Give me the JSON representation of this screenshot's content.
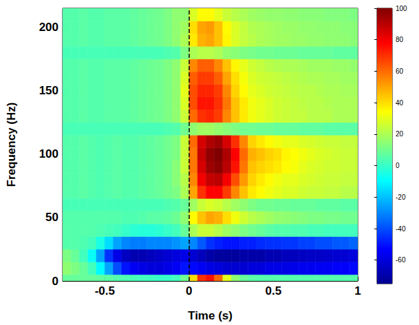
{
  "chart_data": {
    "type": "heatmap",
    "x_label": "Time (s)",
    "y_label": "Frequency (Hz)",
    "xlim": [
      -0.75,
      1
    ],
    "xticks": [
      -0.5,
      0,
      0.5,
      1
    ],
    "ylim": [
      0,
      215
    ],
    "yticks": [
      0,
      50,
      100,
      150,
      200
    ],
    "grid": false,
    "vlines": [
      {
        "x": 0,
        "line_style": "dashed"
      }
    ],
    "colorbar": {
      "range": [
        -75,
        100
      ],
      "ticks": [
        -60,
        -40,
        -20,
        0,
        20,
        40,
        60,
        80,
        100
      ]
    },
    "x": [
      -0.725,
      -0.675,
      -0.625,
      -0.575,
      -0.525,
      -0.475,
      -0.425,
      -0.375,
      -0.325,
      -0.275,
      -0.225,
      -0.175,
      -0.125,
      -0.075,
      -0.025,
      0.025,
      0.075,
      0.125,
      0.175,
      0.225,
      0.275,
      0.325,
      0.375,
      0.425,
      0.475,
      0.525,
      0.575,
      0.625,
      0.675,
      0.725,
      0.775,
      0.825,
      0.875,
      0.925,
      0.975
    ],
    "y": [
      0,
      10,
      20,
      30,
      40,
      50,
      60,
      70,
      80,
      90,
      100,
      110,
      120,
      130,
      140,
      150,
      160,
      170,
      180,
      190,
      200,
      210
    ],
    "values": [
      [
        8,
        8,
        8,
        8,
        7,
        6,
        5,
        4,
        3,
        2,
        1,
        0,
        0,
        2,
        10,
        40,
        70,
        75,
        60,
        30,
        15,
        8,
        6,
        5,
        5,
        5,
        5,
        5,
        5,
        5,
        5,
        5,
        5,
        5,
        5
      ],
      [
        15,
        12,
        8,
        2,
        -10,
        -25,
        -40,
        -50,
        -55,
        -58,
        -60,
        -60,
        -58,
        -55,
        -50,
        -52,
        -55,
        -58,
        -60,
        -62,
        -62,
        -62,
        -60,
        -60,
        -58,
        -58,
        -58,
        -57,
        -56,
        -56,
        -55,
        -55,
        -54,
        -54,
        -52
      ],
      [
        12,
        8,
        2,
        -8,
        -25,
        -45,
        -58,
        -65,
        -68,
        -68,
        -66,
        -64,
        -62,
        -60,
        -58,
        -62,
        -66,
        -70,
        -72,
        -72,
        -72,
        -70,
        -70,
        -70,
        -68,
        -68,
        -66,
        -66,
        -65,
        -64,
        -64,
        -63,
        -62,
        -62,
        -60
      ],
      [
        5,
        5,
        4,
        2,
        -5,
        -15,
        -25,
        -30,
        -32,
        -32,
        -30,
        -30,
        -30,
        -28,
        -25,
        -30,
        -38,
        -45,
        -48,
        -50,
        -50,
        -48,
        -48,
        -46,
        -45,
        -45,
        -44,
        -44,
        -42,
        -42,
        -40,
        -40,
        -38,
        -38,
        -36
      ],
      [
        5,
        5,
        5,
        5,
        4,
        3,
        2,
        0,
        -2,
        -3,
        -3,
        -2,
        0,
        2,
        8,
        20,
        25,
        25,
        22,
        18,
        15,
        12,
        10,
        8,
        6,
        5,
        5,
        4,
        4,
        3,
        3,
        2,
        2,
        2,
        2
      ],
      [
        5,
        5,
        5,
        5,
        5,
        5,
        5,
        4,
        4,
        5,
        6,
        6,
        7,
        9,
        15,
        35,
        45,
        50,
        48,
        40,
        32,
        26,
        22,
        20,
        18,
        16,
        15,
        14,
        13,
        12,
        12,
        11,
        11,
        10,
        10
      ],
      [
        3,
        3,
        3,
        3,
        3,
        3,
        3,
        3,
        3,
        3,
        3,
        3,
        4,
        5,
        8,
        18,
        25,
        28,
        26,
        22,
        18,
        15,
        12,
        10,
        10,
        9,
        9,
        8,
        8,
        8,
        7,
        7,
        7,
        6,
        6
      ],
      [
        5,
        5,
        6,
        5,
        4,
        5,
        6,
        5,
        5,
        6,
        7,
        8,
        10,
        12,
        20,
        50,
        70,
        78,
        78,
        68,
        55,
        45,
        38,
        35,
        32,
        30,
        28,
        28,
        26,
        25,
        25,
        24,
        24,
        22,
        22
      ],
      [
        5,
        5,
        6,
        5,
        4,
        5,
        6,
        5,
        5,
        6,
        7,
        8,
        10,
        14,
        22,
        55,
        80,
        88,
        90,
        80,
        65,
        52,
        42,
        38,
        35,
        32,
        30,
        30,
        28,
        27,
        26,
        25,
        25,
        24,
        24
      ],
      [
        5,
        5,
        6,
        5,
        4,
        5,
        6,
        5,
        5,
        6,
        7,
        8,
        10,
        14,
        25,
        58,
        85,
        95,
        98,
        90,
        75,
        58,
        45,
        42,
        40,
        38,
        35,
        33,
        30,
        28,
        27,
        26,
        26,
        25,
        25
      ],
      [
        5,
        5,
        6,
        5,
        4,
        5,
        6,
        5,
        5,
        6,
        7,
        8,
        10,
        12,
        25,
        58,
        88,
        97,
        100,
        92,
        78,
        60,
        48,
        45,
        42,
        40,
        36,
        34,
        32,
        30,
        28,
        27,
        26,
        25,
        25
      ],
      [
        5,
        5,
        6,
        5,
        4,
        5,
        6,
        5,
        5,
        6,
        7,
        8,
        10,
        12,
        25,
        60,
        85,
        92,
        95,
        85,
        70,
        55,
        42,
        38,
        35,
        32,
        30,
        30,
        28,
        27,
        26,
        25,
        25,
        24,
        24
      ],
      [
        3,
        3,
        3,
        3,
        3,
        3,
        3,
        3,
        3,
        3,
        3,
        3,
        4,
        5,
        10,
        15,
        18,
        18,
        16,
        14,
        12,
        10,
        10,
        9,
        9,
        8,
        8,
        8,
        7,
        7,
        7,
        6,
        6,
        6,
        6
      ],
      [
        5,
        5,
        6,
        5,
        5,
        6,
        6,
        6,
        7,
        8,
        9,
        10,
        12,
        15,
        25,
        60,
        70,
        72,
        68,
        55,
        45,
        38,
        32,
        30,
        28,
        26,
        25,
        24,
        24,
        22,
        22,
        22,
        20,
        20,
        20
      ],
      [
        5,
        5,
        6,
        5,
        5,
        6,
        6,
        6,
        7,
        8,
        9,
        10,
        12,
        15,
        28,
        65,
        75,
        75,
        70,
        58,
        45,
        38,
        32,
        30,
        28,
        26,
        25,
        24,
        23,
        22,
        22,
        21,
        20,
        20,
        20
      ],
      [
        5,
        5,
        6,
        5,
        5,
        6,
        6,
        6,
        7,
        8,
        9,
        10,
        12,
        15,
        30,
        65,
        72,
        72,
        68,
        55,
        42,
        35,
        30,
        28,
        26,
        25,
        24,
        23,
        22,
        22,
        21,
        20,
        20,
        19,
        19
      ],
      [
        5,
        5,
        6,
        5,
        5,
        6,
        6,
        6,
        7,
        8,
        9,
        10,
        12,
        15,
        28,
        62,
        68,
        68,
        62,
        50,
        40,
        33,
        28,
        26,
        25,
        24,
        23,
        22,
        21,
        20,
        20,
        19,
        19,
        18,
        18
      ],
      [
        5,
        5,
        6,
        5,
        5,
        6,
        6,
        6,
        7,
        8,
        9,
        10,
        12,
        15,
        25,
        55,
        62,
        62,
        55,
        45,
        36,
        30,
        26,
        24,
        22,
        21,
        20,
        20,
        19,
        18,
        18,
        18,
        17,
        17,
        16
      ],
      [
        3,
        3,
        3,
        3,
        3,
        3,
        3,
        3,
        3,
        3,
        3,
        3,
        4,
        5,
        12,
        20,
        22,
        22,
        20,
        16,
        14,
        12,
        11,
        10,
        10,
        9,
        9,
        9,
        8,
        8,
        8,
        8,
        7,
        7,
        7
      ],
      [
        5,
        5,
        6,
        5,
        5,
        6,
        6,
        6,
        7,
        8,
        9,
        10,
        12,
        15,
        20,
        38,
        48,
        50,
        45,
        36,
        28,
        24,
        22,
        20,
        19,
        18,
        18,
        17,
        17,
        16,
        16,
        15,
        15,
        15,
        14
      ],
      [
        5,
        5,
        6,
        5,
        5,
        6,
        6,
        6,
        7,
        8,
        9,
        10,
        12,
        15,
        18,
        40,
        50,
        52,
        45,
        35,
        28,
        24,
        21,
        20,
        19,
        18,
        17,
        17,
        16,
        16,
        15,
        15,
        15,
        14,
        14
      ],
      [
        5,
        5,
        6,
        5,
        5,
        6,
        6,
        6,
        7,
        8,
        9,
        10,
        12,
        15,
        15,
        28,
        35,
        35,
        30,
        25,
        22,
        20,
        18,
        17,
        16,
        16,
        15,
        15,
        14,
        14,
        14,
        13,
        13,
        13,
        12
      ]
    ]
  }
}
